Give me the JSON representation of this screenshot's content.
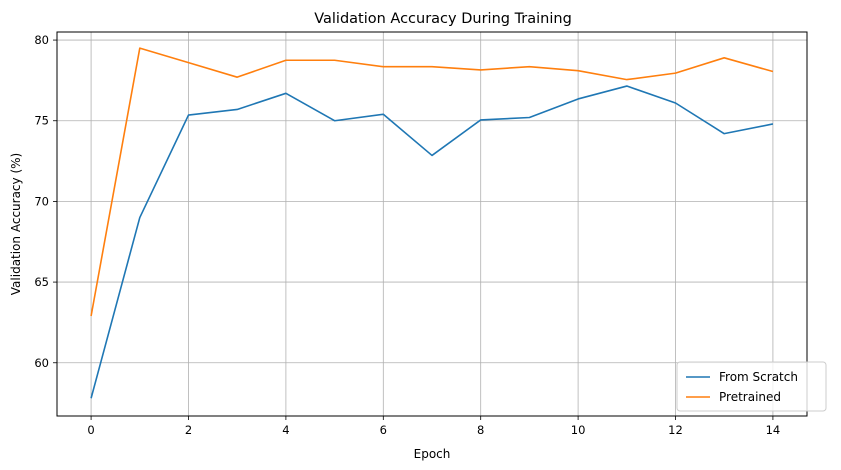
{
  "chart_data": {
    "type": "line",
    "title": "Validation Accuracy During Training",
    "xlabel": "Epoch",
    "ylabel": "Validation Accuracy (%)",
    "x": [
      0,
      1,
      2,
      3,
      4,
      5,
      6,
      7,
      8,
      9,
      10,
      11,
      12,
      13,
      14
    ],
    "xlim": [
      -0.7,
      14.7
    ],
    "ylim": [
      56.7,
      80.5
    ],
    "xticks": [
      0,
      2,
      4,
      6,
      8,
      10,
      12,
      14
    ],
    "yticks": [
      60,
      65,
      70,
      75,
      80
    ],
    "grid": true,
    "legend_position": "lower-right",
    "series": [
      {
        "name": "From Scratch",
        "color": "#1f77b4",
        "values": [
          57.8,
          69.0,
          75.35,
          75.7,
          76.7,
          75.0,
          75.4,
          72.85,
          75.05,
          75.2,
          76.35,
          77.15,
          76.1,
          74.2,
          74.8
        ]
      },
      {
        "name": "Pretrained",
        "color": "#ff7f0e",
        "values": [
          62.9,
          79.5,
          78.6,
          77.7,
          78.75,
          78.75,
          78.35,
          78.35,
          78.15,
          78.35,
          78.1,
          77.55,
          77.95,
          78.9,
          78.05
        ]
      }
    ]
  }
}
